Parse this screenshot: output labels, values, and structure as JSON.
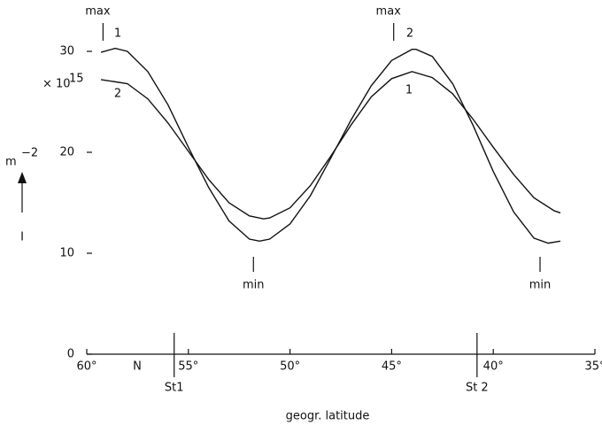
{
  "chart_data": {
    "type": "line",
    "xlabel": "geogr. latitude",
    "ylabel": {
      "unit": "m",
      "unit_exp": "−2",
      "symbol": "I"
    },
    "y_scale_label": {
      "base": "× 10",
      "exponent": "15"
    },
    "xlim": [
      60,
      35
    ],
    "ylim": [
      0,
      30
    ],
    "xticks": [
      {
        "value": 60,
        "label": "60°"
      },
      {
        "value": 55,
        "label": "55°"
      },
      {
        "value": 50,
        "label": "50°"
      },
      {
        "value": 45,
        "label": "45°"
      },
      {
        "value": 40,
        "label": "40°"
      },
      {
        "value": 35,
        "label": "35°"
      }
    ],
    "yticks": [
      0,
      10,
      20,
      30
    ],
    "color": "#111111",
    "series": [
      {
        "name": "1",
        "x": [
          59.3,
          58.6,
          58,
          57,
          56,
          55,
          54,
          53,
          52,
          51.5,
          51,
          50,
          49,
          48,
          47,
          46,
          45,
          44,
          43.8,
          43,
          42,
          41,
          40,
          39,
          38,
          37.3,
          36.7
        ],
        "values": [
          29.9,
          30.3,
          30.0,
          28.0,
          24.7,
          20.5,
          16.5,
          13.2,
          11.4,
          11.2,
          11.4,
          12.9,
          15.7,
          19.4,
          23.2,
          26.6,
          29.1,
          30.2,
          30.2,
          29.5,
          26.8,
          22.7,
          18.1,
          14.1,
          11.5,
          11.0,
          11.2
        ]
      },
      {
        "name": "2",
        "x": [
          59.3,
          58,
          57,
          56,
          55,
          54,
          53,
          52,
          51.3,
          51,
          50,
          49,
          48,
          47,
          46,
          45,
          44,
          43,
          42,
          41,
          40,
          39,
          38,
          37,
          36.7
        ],
        "values": [
          27.2,
          26.8,
          25.3,
          22.9,
          20.1,
          17.3,
          15.0,
          13.7,
          13.4,
          13.5,
          14.5,
          16.7,
          19.6,
          22.7,
          25.5,
          27.3,
          28.0,
          27.4,
          25.8,
          23.3,
          20.5,
          17.8,
          15.5,
          14.2,
          14.0
        ]
      }
    ],
    "markers": [
      {
        "label": "max",
        "x": 59.2
      },
      {
        "label": "max",
        "x": 44.9
      },
      {
        "label": "min",
        "x": 51.8
      },
      {
        "label": "min",
        "x": 37.7
      }
    ],
    "curve_labels_right": [
      "2",
      "1"
    ],
    "region_label": "N",
    "stations": [
      {
        "label": "St1",
        "x": 55.7
      },
      {
        "label": "St 2",
        "x": 40.8
      }
    ]
  }
}
